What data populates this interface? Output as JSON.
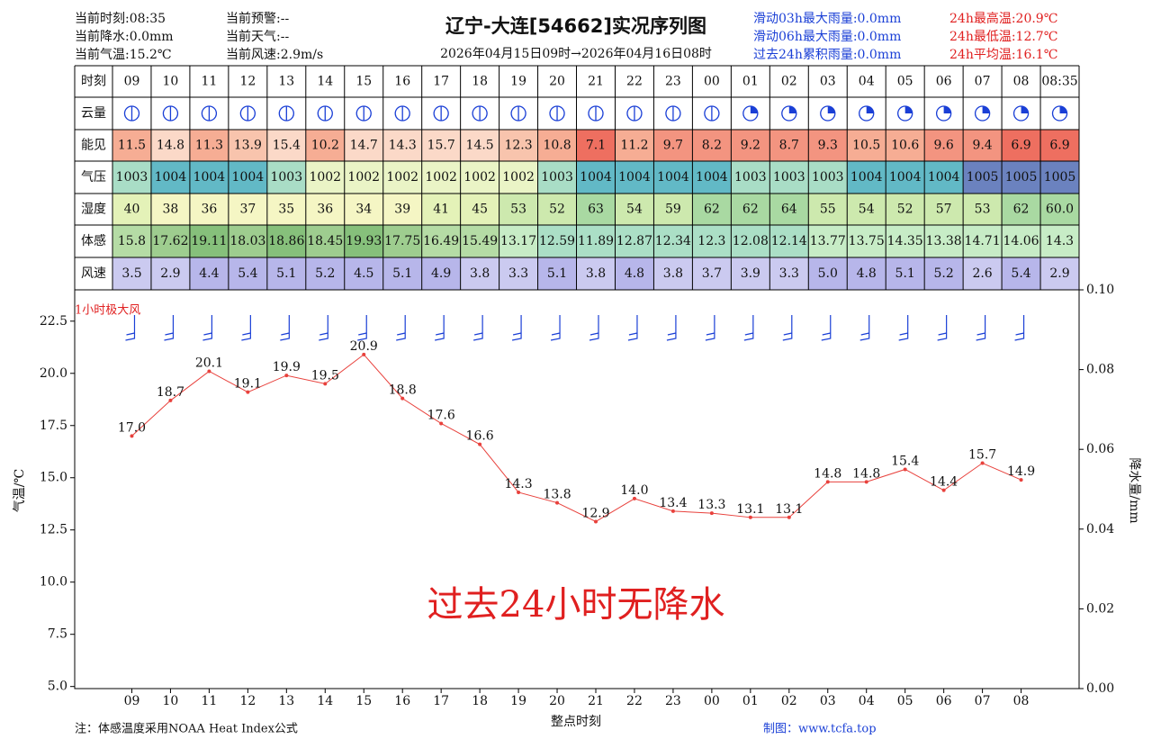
{
  "header": {
    "title": "辽宁-大连[54662]实况序列图",
    "subtitle": "2026年04月15日09时→2026年04月16日08时",
    "current_left": [
      "当前时刻:08:35",
      "当前降水:0.0mm",
      "当前气温:15.2℃"
    ],
    "current_mid": [
      "当前预警:--",
      "当前天气:--",
      "当前风速:2.9m/s"
    ],
    "rain_stats": [
      "滑动03h最大雨量:0.0mm",
      "滑动06h最大雨量:0.0mm",
      "过去24h累积雨量:0.0mm"
    ],
    "temp_stats": [
      "24h最高温:20.9℃",
      "24h最低温:12.7℃",
      "24h平均温:16.1℃"
    ]
  },
  "table": {
    "time_row": {
      "label": "时刻",
      "cells": [
        "09",
        "10",
        "11",
        "12",
        "13",
        "14",
        "15",
        "16",
        "17",
        "18",
        "19",
        "20",
        "21",
        "22",
        "23",
        "00",
        "01",
        "02",
        "03",
        "04",
        "05",
        "06",
        "07",
        "08",
        "08:35"
      ]
    },
    "cloud_row": {
      "label": "云量"
    },
    "rows": [
      {
        "label": "能见",
        "cells": [
          "11.5",
          "14.8",
          "11.3",
          "13.9",
          "15.4",
          "10.2",
          "14.7",
          "14.3",
          "15.7",
          "14.5",
          "12.3",
          "10.8",
          "7.1",
          "11.2",
          "9.7",
          "8.2",
          "9.2",
          "8.7",
          "9.3",
          "10.5",
          "10.6",
          "9.6",
          "9.4",
          "6.9",
          "6.9"
        ]
      },
      {
        "label": "气压",
        "cells": [
          "1003",
          "1004",
          "1004",
          "1004",
          "1003",
          "1002",
          "1002",
          "1002",
          "1002",
          "1002",
          "1002",
          "1003",
          "1004",
          "1004",
          "1004",
          "1004",
          "1003",
          "1003",
          "1003",
          "1004",
          "1004",
          "1004",
          "1005",
          "1005",
          "1005"
        ]
      },
      {
        "label": "湿度",
        "cells": [
          "40",
          "38",
          "36",
          "37",
          "35",
          "36",
          "34",
          "39",
          "41",
          "45",
          "53",
          "52",
          "63",
          "54",
          "59",
          "62",
          "62",
          "64",
          "55",
          "54",
          "52",
          "57",
          "53",
          "62",
          "60.0"
        ]
      },
      {
        "label": "体感",
        "cells": [
          "15.8",
          "17.62",
          "19.11",
          "18.03",
          "18.86",
          "18.45",
          "19.93",
          "17.75",
          "16.49",
          "15.49",
          "13.17",
          "12.59",
          "11.89",
          "12.87",
          "12.34",
          "12.3",
          "12.08",
          "12.14",
          "13.77",
          "13.75",
          "14.35",
          "13.38",
          "14.71",
          "14.06",
          "14.3"
        ]
      },
      {
        "label": "风速",
        "cells": [
          "3.5",
          "2.9",
          "4.4",
          "5.4",
          "5.1",
          "5.2",
          "4.5",
          "5.1",
          "4.9",
          "3.8",
          "3.3",
          "5.1",
          "3.8",
          "4.8",
          "3.8",
          "3.7",
          "3.9",
          "3.3",
          "5.0",
          "4.8",
          "5.1",
          "5.2",
          "2.6",
          "5.4",
          "2.9"
        ]
      }
    ]
  },
  "chart_data": {
    "type": "line",
    "x_label": "整点时刻",
    "y_label": "气温/℃",
    "y2_label": "降水量/mm",
    "annotations": [
      "过去24小时无降水",
      "1小时极大风"
    ],
    "categories": [
      "09",
      "10",
      "11",
      "12",
      "13",
      "14",
      "15",
      "16",
      "17",
      "18",
      "19",
      "20",
      "21",
      "22",
      "23",
      "00",
      "01",
      "02",
      "03",
      "04",
      "05",
      "06",
      "07",
      "08"
    ],
    "series": [
      {
        "color": "#e8413c",
        "values": [
          17.0,
          18.7,
          20.1,
          19.1,
          19.9,
          19.5,
          20.9,
          18.8,
          17.6,
          16.6,
          14.3,
          13.8,
          12.9,
          14.0,
          13.4,
          13.3,
          13.1,
          13.1,
          14.8,
          14.8,
          15.4,
          14.4,
          15.7,
          14.9
        ],
        "value_labels": [
          "17.0",
          "18.7",
          "20.1",
          "19.1",
          "19.9",
          "19.5",
          "20.9",
          "18.8",
          "17.6",
          "16.6",
          "14.3",
          "13.8",
          "12.9",
          "14.0",
          "13.4",
          "13.3",
          "13.1",
          "13.1",
          "14.8",
          "14.8",
          "15.4",
          "14.4",
          "15.7",
          "14.9"
        ]
      }
    ],
    "ylim": [
      4.9,
      24.0
    ],
    "yticks": [
      {
        "value": 5,
        "label": "5.0"
      },
      {
        "value": 7.5,
        "label": "7.5"
      },
      {
        "value": 10,
        "label": "10.0"
      },
      {
        "value": 12.5,
        "label": "12.5"
      },
      {
        "value": 15,
        "label": "15.0"
      },
      {
        "value": 17.5,
        "label": "17.5"
      },
      {
        "value": 20,
        "label": "20.0"
      },
      {
        "value": 22.5,
        "label": "22.5"
      }
    ],
    "y2lim": [
      0,
      0.1
    ],
    "y2ticks": [
      {
        "value": 0,
        "label": "0.00"
      },
      {
        "value": 0.02,
        "label": "0.02"
      },
      {
        "value": 0.04,
        "label": "0.04"
      },
      {
        "value": 0.06,
        "label": "0.06"
      },
      {
        "value": 0.08,
        "label": "0.08"
      },
      {
        "value": 0.1,
        "label": "0.10"
      }
    ],
    "grid": false
  },
  "footer": {
    "note": "注：体感温度采用NOAA Heat Index公式",
    "credit": "制图：www.tcfa.top"
  }
}
